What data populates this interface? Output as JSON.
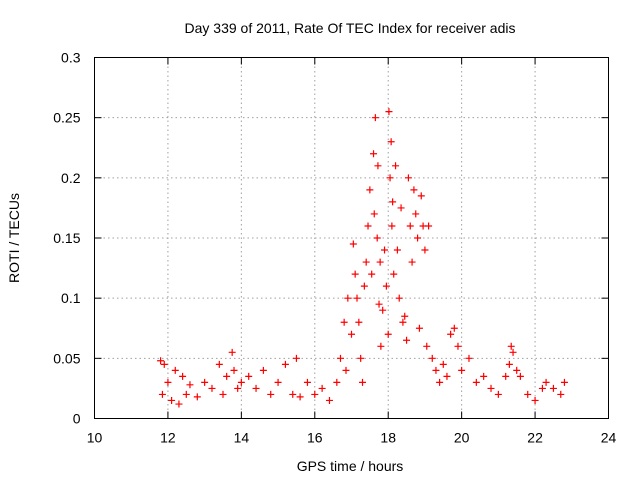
{
  "chart_data": {
    "type": "scatter",
    "title": "Day 339 of 2011, Rate Of TEC Index for receiver adis",
    "xlabel": "GPS time / hours",
    "ylabel": "ROTI / TECUs",
    "xlim": [
      10,
      24
    ],
    "ylim": [
      0,
      0.3
    ],
    "xticks": [
      "10",
      "12",
      "14",
      "16",
      "18",
      "20",
      "22",
      "24"
    ],
    "yticks": [
      "0",
      "0.05",
      "0.1",
      "0.15",
      "0.2",
      "0.25",
      "0.3"
    ],
    "grid": true,
    "marker": "+",
    "marker_color": "#ff0000",
    "series": [
      {
        "x": [
          11.8,
          11.85,
          11.9,
          12.0,
          12.1,
          12.2,
          12.3,
          12.4,
          12.5,
          12.6,
          12.8,
          13.0,
          13.2,
          13.4,
          13.5,
          13.6,
          13.75,
          13.8,
          13.9,
          14.0,
          14.2,
          14.4,
          14.6,
          14.8,
          15.0,
          15.2,
          15.4,
          15.5,
          15.6,
          15.8,
          16.0,
          16.2,
          16.4,
          16.6,
          16.7,
          16.8,
          16.85,
          16.9,
          17.0,
          17.05,
          17.1,
          17.15,
          17.2,
          17.25,
          17.3,
          17.35,
          17.4,
          17.45,
          17.5,
          17.55,
          17.6,
          17.62,
          17.65,
          17.7,
          17.72,
          17.75,
          17.78,
          17.8,
          17.85,
          17.9,
          17.95,
          18.0,
          18.02,
          18.05,
          18.08,
          18.1,
          18.12,
          18.15,
          18.2,
          18.25,
          18.3,
          18.35,
          18.4,
          18.45,
          18.5,
          18.55,
          18.6,
          18.65,
          18.7,
          18.75,
          18.8,
          18.85,
          18.9,
          18.95,
          19.0,
          19.05,
          19.1,
          19.2,
          19.3,
          19.4,
          19.5,
          19.6,
          19.7,
          19.8,
          19.9,
          20.0,
          20.2,
          20.4,
          20.6,
          20.8,
          21.0,
          21.2,
          21.3,
          21.35,
          21.4,
          21.5,
          21.6,
          21.8,
          22.0,
          22.2,
          22.3,
          22.5,
          22.7,
          22.8
        ],
        "y": [
          0.048,
          0.02,
          0.045,
          0.03,
          0.015,
          0.04,
          0.012,
          0.035,
          0.02,
          0.028,
          0.018,
          0.03,
          0.025,
          0.045,
          0.02,
          0.035,
          0.055,
          0.04,
          0.025,
          0.03,
          0.035,
          0.025,
          0.04,
          0.02,
          0.03,
          0.045,
          0.02,
          0.05,
          0.018,
          0.03,
          0.02,
          0.025,
          0.015,
          0.03,
          0.05,
          0.08,
          0.04,
          0.1,
          0.07,
          0.145,
          0.12,
          0.1,
          0.08,
          0.05,
          0.03,
          0.11,
          0.13,
          0.16,
          0.19,
          0.12,
          0.22,
          0.17,
          0.25,
          0.15,
          0.21,
          0.095,
          0.13,
          0.06,
          0.09,
          0.14,
          0.11,
          0.07,
          0.255,
          0.2,
          0.23,
          0.16,
          0.18,
          0.12,
          0.21,
          0.14,
          0.1,
          0.175,
          0.08,
          0.085,
          0.065,
          0.2,
          0.16,
          0.13,
          0.19,
          0.17,
          0.15,
          0.075,
          0.185,
          0.16,
          0.14,
          0.06,
          0.16,
          0.05,
          0.04,
          0.03,
          0.045,
          0.035,
          0.07,
          0.075,
          0.06,
          0.04,
          0.05,
          0.03,
          0.035,
          0.025,
          0.02,
          0.035,
          0.045,
          0.06,
          0.055,
          0.04,
          0.035,
          0.02,
          0.015,
          0.025,
          0.03,
          0.025,
          0.02,
          0.03
        ]
      }
    ]
  }
}
